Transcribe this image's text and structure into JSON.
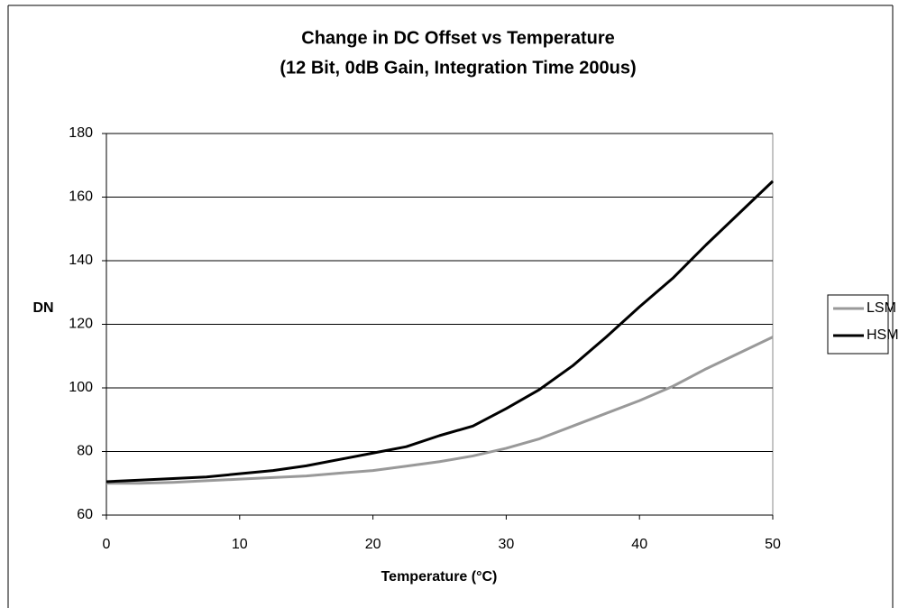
{
  "chart_data": {
    "type": "line",
    "title": "Change in DC Offset vs Temperature",
    "subtitle": "(12 Bit, 0dB Gain, Integration Time 200us)",
    "x_label": "Temperature (°C)",
    "y_label": "DN",
    "x": [
      0,
      2.5,
      5,
      7.5,
      10,
      12.5,
      15,
      17.5,
      20,
      22.5,
      25,
      27.5,
      30,
      32.5,
      35,
      37.5,
      40,
      42.5,
      45,
      47.5,
      50
    ],
    "series": [
      {
        "name": "LSM",
        "color": "#999999",
        "values": [
          70,
          70,
          70.3,
          70.8,
          71.3,
          71.8,
          72.3,
          73.2,
          74,
          75.4,
          76.8,
          78.6,
          81,
          84,
          88,
          92,
          96,
          100.5,
          106,
          111,
          116
        ]
      },
      {
        "name": "HSM",
        "color": "#000000",
        "values": [
          70.5,
          71,
          71.5,
          72,
          73,
          74,
          75.5,
          77.5,
          79.5,
          81.5,
          85,
          88,
          93.5,
          99.5,
          107,
          116,
          125.5,
          134.5,
          145,
          155,
          165
        ]
      }
    ],
    "xlim": [
      0,
      50
    ],
    "xticks": [
      0,
      10,
      20,
      30,
      40,
      50
    ],
    "ylim": [
      60,
      180
    ],
    "yticks": [
      60,
      80,
      100,
      120,
      140,
      160,
      180
    ],
    "grid": true,
    "legend": "right"
  }
}
